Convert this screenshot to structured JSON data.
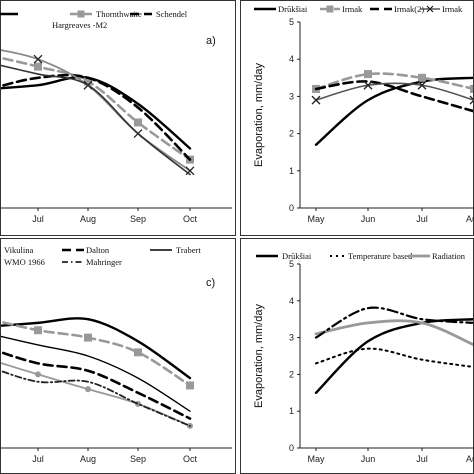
{
  "chart_data": [
    {
      "id": "a",
      "type": "line",
      "panel_label": "a)",
      "ylabel": "",
      "categories": [
        "",
        "Jul",
        "Aug",
        "Sep",
        "Oct"
      ],
      "ylim": [
        0,
        5
      ],
      "series": [
        {
          "name": "",
          "color": "#000000",
          "width": 2.4,
          "dash": "",
          "marker": "",
          "values": [
            3.2,
            3.3,
            3.5,
            2.8,
            1.6
          ]
        },
        {
          "name": "Thornthwaite",
          "color": "#999999",
          "width": 2.6,
          "dash": "9 5",
          "marker": "square",
          "values": [
            4.1,
            3.8,
            3.4,
            2.3,
            1.3
          ]
        },
        {
          "name": "Schendel",
          "color": "#000000",
          "width": 2.6,
          "dash": "9 5",
          "marker": "",
          "values": [
            3.2,
            3.5,
            3.5,
            2.7,
            1.3
          ]
        },
        {
          "name": "Hargreaves -M2",
          "color": "#888888",
          "width": 1.8,
          "dash": "",
          "marker": "cross",
          "values": [
            4.3,
            4.0,
            3.3,
            2.0,
            1.0
          ]
        },
        {
          "name": "",
          "color": "#333333",
          "width": 1.6,
          "dash": "",
          "marker": "",
          "values": [
            3.9,
            3.6,
            3.3,
            2.0,
            0.9
          ]
        }
      ]
    },
    {
      "id": "b",
      "type": "line",
      "panel_label": "",
      "ylabel": "Evaporation, mm/day",
      "categories": [
        "May",
        "Jun",
        "Jul",
        "Aug"
      ],
      "ylim": [
        0,
        5
      ],
      "series": [
        {
          "name": "Drūkšiai",
          "color": "#000000",
          "width": 2.4,
          "dash": "",
          "marker": "",
          "values": [
            1.7,
            2.9,
            3.4,
            3.5
          ]
        },
        {
          "name": "Irmak",
          "color": "#999999",
          "width": 2.6,
          "dash": "9 5",
          "marker": "square",
          "values": [
            3.2,
            3.6,
            3.5,
            3.2
          ]
        },
        {
          "name": "Irmak(2)",
          "color": "#000000",
          "width": 2.6,
          "dash": "9 5",
          "marker": "",
          "values": [
            3.2,
            3.4,
            3.0,
            2.6
          ]
        },
        {
          "name": "Irmak",
          "color": "#555555",
          "width": 1.6,
          "dash": "",
          "marker": "cross",
          "values": [
            2.9,
            3.3,
            3.3,
            2.9
          ]
        }
      ]
    },
    {
      "id": "c",
      "type": "line",
      "panel_label": "c)",
      "ylabel": "",
      "categories": [
        "",
        "Jul",
        "Aug",
        "Sep",
        "Oct"
      ],
      "ylim": [
        0,
        5
      ],
      "series": [
        {
          "name": "",
          "color": "#000000",
          "width": 2.4,
          "dash": "",
          "marker": "",
          "values": [
            3.3,
            3.4,
            3.5,
            2.9,
            1.9
          ]
        },
        {
          "name": "Vikulina",
          "color": "#999999",
          "width": 2.6,
          "dash": "9 5",
          "marker": "square",
          "values": [
            3.5,
            3.2,
            3.0,
            2.6,
            1.7
          ]
        },
        {
          "name": "Dalton",
          "color": "#000000",
          "width": 2.6,
          "dash": "9 5",
          "marker": "",
          "values": [
            2.7,
            2.3,
            2.1,
            1.5,
            0.8
          ]
        },
        {
          "name": "Trabert",
          "color": "#000000",
          "width": 1.4,
          "dash": "",
          "marker": "",
          "values": [
            3.1,
            2.8,
            2.5,
            1.9,
            1.0
          ]
        },
        {
          "name": "WMO 1966",
          "color": "#999999",
          "width": 1.8,
          "dash": "",
          "marker": "dot",
          "values": [
            2.4,
            2.0,
            1.6,
            1.2,
            0.6
          ]
        },
        {
          "name": "Mahringer",
          "color": "#222222",
          "width": 1.8,
          "dash": "6 3 1.5 3",
          "marker": "",
          "values": [
            2.2,
            1.8,
            1.8,
            1.2,
            0.6
          ]
        }
      ]
    },
    {
      "id": "d",
      "type": "line",
      "panel_label": "",
      "ylabel": "Evaporation, mm/day",
      "categories": [
        "May",
        "Jun",
        "Jul",
        "Aug"
      ],
      "ylim": [
        0,
        5
      ],
      "series": [
        {
          "name": "Drūkšiai",
          "color": "#000000",
          "width": 2.4,
          "dash": "",
          "marker": "",
          "values": [
            1.5,
            2.9,
            3.4,
            3.5
          ]
        },
        {
          "name": "Temperature based",
          "color": "#000000",
          "width": 2.0,
          "dash": "2 4",
          "marker": "",
          "values": [
            2.3,
            2.7,
            2.4,
            2.2
          ]
        },
        {
          "name": "Radiation",
          "color": "#999999",
          "width": 2.8,
          "dash": "",
          "marker": "",
          "values": [
            3.1,
            3.4,
            3.4,
            2.8
          ]
        },
        {
          "name": "",
          "color": "#000000",
          "width": 2.2,
          "dash": "10 4 2 4",
          "marker": "",
          "values": [
            3.0,
            3.8,
            3.5,
            3.4
          ]
        }
      ]
    }
  ]
}
